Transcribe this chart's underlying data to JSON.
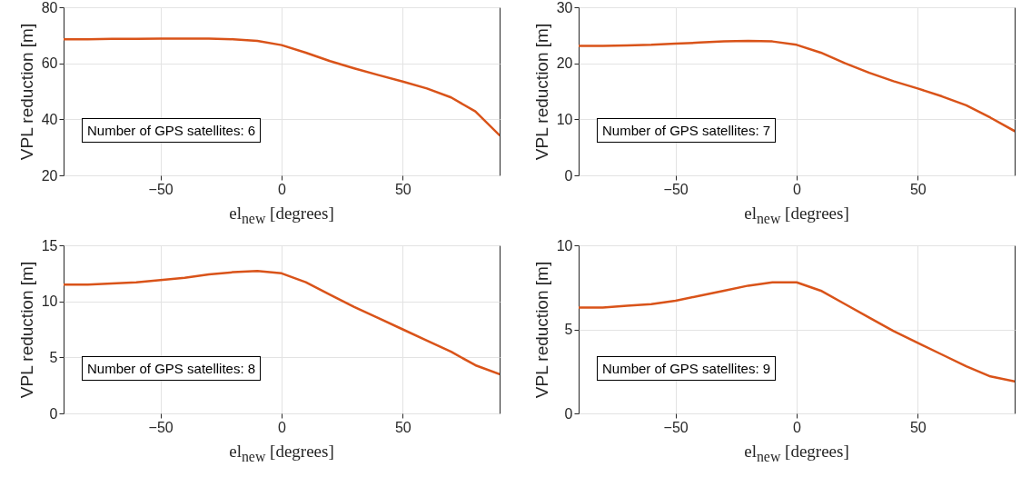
{
  "chart_data": [
    {
      "type": "line",
      "xlabel": "el$_{new}$ [degrees]",
      "ylabel": "VPL reduction [m]",
      "annotations": [
        "Number of GPS satellites: 6"
      ],
      "x": [
        -90,
        -80,
        -70,
        -60,
        -50,
        -40,
        -30,
        -20,
        -10,
        0,
        10,
        20,
        30,
        40,
        50,
        60,
        70,
        80,
        90
      ],
      "xlim": [
        -90,
        90
      ],
      "xticks": [
        -50,
        0,
        50
      ],
      "ylim": [
        20,
        80
      ],
      "yticks": [
        20,
        40,
        60,
        80
      ],
      "grid": true,
      "series": [
        {
          "color": "#d95319",
          "values": [
            68.6,
            68.6,
            68.7,
            68.7,
            68.8,
            68.8,
            68.8,
            68.6,
            68,
            66.5,
            63.8,
            60.8,
            58.2,
            55.8,
            53.5,
            51,
            47.8,
            42.8,
            34.3
          ]
        }
      ]
    },
    {
      "type": "line",
      "xlabel": "el$_{new}$ [degrees]",
      "ylabel": "VPL reduction [m]",
      "annotations": [
        "Number of GPS satellites: 7"
      ],
      "x": [
        -90,
        -80,
        -70,
        -60,
        -50,
        -40,
        -30,
        -20,
        -10,
        0,
        10,
        20,
        30,
        40,
        50,
        60,
        70,
        80,
        90
      ],
      "xlim": [
        -90,
        90
      ],
      "xticks": [
        -50,
        0,
        50
      ],
      "ylim": [
        0,
        30
      ],
      "yticks": [
        0,
        10,
        20,
        30
      ],
      "grid": true,
      "series": [
        {
          "color": "#d95319",
          "values": [
            23.1,
            23.1,
            23.2,
            23.3,
            23.5,
            23.7,
            23.9,
            24.0,
            23.9,
            23.3,
            21.9,
            20.0,
            18.3,
            16.8,
            15.5,
            14.1,
            12.5,
            10.3,
            7.9
          ]
        }
      ]
    },
    {
      "type": "line",
      "xlabel": "el$_{new}$ [degrees]",
      "ylabel": "VPL reduction [m]",
      "annotations": [
        "Number of GPS satellites: 8"
      ],
      "x": [
        -90,
        -80,
        -70,
        -60,
        -50,
        -40,
        -30,
        -20,
        -10,
        0,
        10,
        20,
        30,
        40,
        50,
        60,
        70,
        80,
        90
      ],
      "xlim": [
        -90,
        90
      ],
      "xticks": [
        -50,
        0,
        50
      ],
      "ylim": [
        0,
        15
      ],
      "yticks": [
        0,
        5,
        10,
        15
      ],
      "grid": true,
      "series": [
        {
          "color": "#d95319",
          "values": [
            11.5,
            11.5,
            11.6,
            11.7,
            11.9,
            12.1,
            12.4,
            12.6,
            12.7,
            12.5,
            11.7,
            10.6,
            9.5,
            8.5,
            7.5,
            6.5,
            5.5,
            4.3,
            3.5
          ]
        }
      ]
    },
    {
      "type": "line",
      "xlabel": "el$_{new}$ [degrees]",
      "ylabel": "VPL reduction [m]",
      "annotations": [
        "Number of GPS satellites: 9"
      ],
      "x": [
        -90,
        -80,
        -70,
        -60,
        -50,
        -40,
        -30,
        -20,
        -10,
        0,
        10,
        20,
        30,
        40,
        50,
        60,
        70,
        80,
        90
      ],
      "xlim": [
        -90,
        90
      ],
      "xticks": [
        -50,
        0,
        50
      ],
      "ylim": [
        0,
        10
      ],
      "yticks": [
        0,
        5,
        10
      ],
      "grid": true,
      "series": [
        {
          "color": "#d95319",
          "values": [
            6.3,
            6.3,
            6.4,
            6.5,
            6.7,
            7.0,
            7.3,
            7.6,
            7.8,
            7.8,
            7.3,
            6.5,
            5.7,
            4.9,
            4.2,
            3.5,
            2.8,
            2.2,
            1.9
          ]
        }
      ]
    }
  ]
}
